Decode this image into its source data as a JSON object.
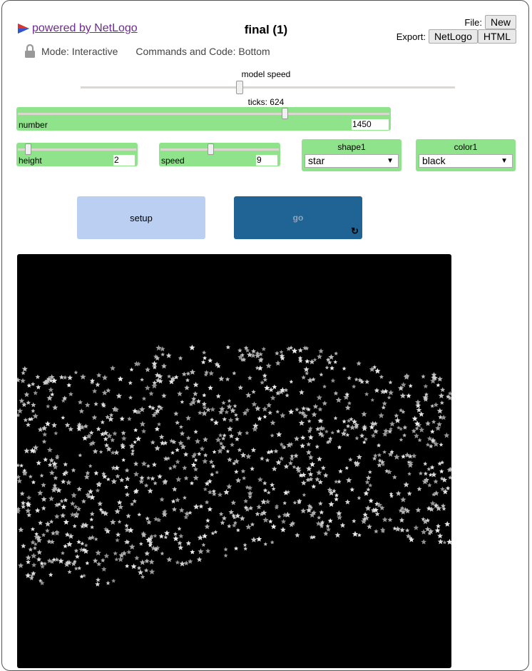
{
  "header": {
    "powered_by": "powered by NetLogo",
    "title": "final (1)",
    "file_label": "File:",
    "file_new": "New",
    "export_label": "Export:",
    "export_netlogo": "NetLogo",
    "export_html": "HTML",
    "mode": "Mode: Interactive",
    "commands_code": "Commands and Code: Bottom"
  },
  "speed": {
    "label": "model speed",
    "value_fraction": 0.43
  },
  "ticks": "ticks: 624",
  "widgets": {
    "number": {
      "label": "number",
      "value": "1450",
      "fraction": 0.72
    },
    "height": {
      "label": "height",
      "value": "2",
      "fraction": 0.07
    },
    "speed": {
      "label": "speed",
      "value": "9",
      "fraction": 0.43
    },
    "shape1": {
      "label": "shape1",
      "selected": "star"
    },
    "color1": {
      "label": "color1",
      "selected": "black"
    }
  },
  "buttons": {
    "setup": "setup",
    "go": "go"
  },
  "colors": {
    "widget_green": "#8fe38a",
    "setup_bg": "#bacff2",
    "go_bg": "#1f6495",
    "link": "#6e2c8f",
    "view_bg": "#000000"
  },
  "icons": [
    "netlogo-logo-icon",
    "lock-icon",
    "forever-icon",
    "dropdown-arrow-icon"
  ]
}
